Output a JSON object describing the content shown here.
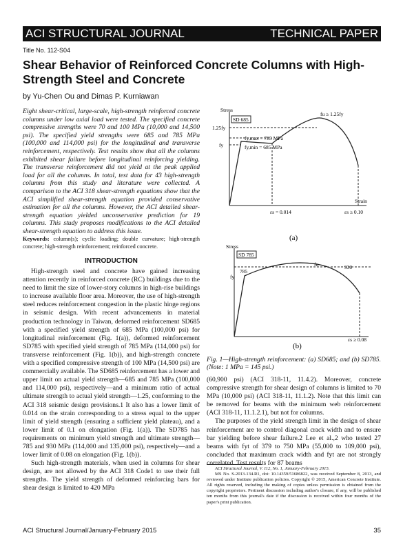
{
  "header": {
    "journal": "ACI STRUCTURAL JOURNAL",
    "section": "TECHNICAL PAPER"
  },
  "title_no": "Title No. 112-S04",
  "title": "Shear Behavior of Reinforced Concrete Columns with High-Strength Steel and Concrete",
  "authors": "by Yu-Chen Ou and Dimas P. Kurniawan",
  "abstract": "Eight shear-critical, large-scale, high-strength reinforced concrete columns under low axial load were tested. The specified concrete compressive strengths were 70 and 100 MPa (10,000 and 14,500 psi). The specified yield strengths were 685 and 785 MPa (100,000 and 114,000 psi) for the longitudinal and transverse reinforcement, respectively. Test results show that all the columns exhibited shear failure before longitudinal reinforcing yielding. The transverse reinforcement did not yield at the peak applied load for all the columns. In total, test data for 43 high-strength columns from this study and literature were collected. A comparison to the ACI 318 shear-strength equations show that the ACI simplified shear-strength equation provided conservative estimation for all the columns. However, the ACI detailed shear-strength equation yielded unconservative prediction for 19 columns. This study proposes modifications to the ACI detailed shear-strength equation to address this issue.",
  "keywords_label": "Keywords:",
  "keywords": "column(s); cyclic loading; double curvature; high-strength concrete; high-strength reinforcement; reinforced concrete.",
  "intro_heading": "INTRODUCTION",
  "body_left": [
    "High-strength steel and concrete have gained increasing attention recently in reinforced concrete (RC) buildings due to the need to limit the size of lower-story columns in high-rise buildings to increase available floor area. Moreover, the use of high-strength steel reduces reinforcement congestion in the plastic hinge regions in seismic design. With recent advancements in material production technology in Taiwan, deformed reinforcement SD685 with a specified yield strength of 685 MPa (100,000 psi) for longitudinal reinforcement (Fig. 1(a)), deformed reinforcement SD785 with specified yield strength of 785 MPa (114,000 psi) for transverse reinforcement (Fig. 1(b)), and high-strength concrete with a specified compressive strength of 100 MPa (14,500 psi) are commercially available. The SD685 reinforcement has a lower and upper limit on actual yield strength—685 and 785 MPa (100,000 and 114,000 psi), respectively—and a minimum ratio of actual ultimate strength to actual yield strength—1.25, conforming to the ACI 318 seismic design provisions.1 It also has a lower limit of 0.014 on the strain corresponding to a stress equal to the upper limit of yield strength (ensuring a sufficient yield plateau), and a lower limit of 0.1 on elongation (Fig. 1(a)). The SD785 has requirements on minimum yield strength and ultimate strength—785 and 930 MPa (114,000 and 135,000 psi), respectively—and a lower limit of 0.08 on elongation (Fig. 1(b)).",
    "Such high-strength materials, when used in columns for shear design, are not allowed by the ACI 318 Code1 to use their full strengths. The yield strength of deformed reinforcing bars for shear design is limited to 420 MPa"
  ],
  "body_right": [
    "(60,900 psi) (ACI 318-11, 11.4.2). Moreover, concrete compressive strength for shear design of columns is limited to 70 MPa (10,000 psi) (ACI 318-11, 11.1.2). Note that this limit can be removed for beams with the minimum web reinforcement (ACI 318-11, 11.1.2.1), but not for columns.",
    "The purposes of the yield strength limit in the design of shear reinforcement are to control diagonal crack width and to ensure bar yielding before shear failure.2 Lee et al.,2 who tested 27 beams with fyt of 379 to 750 MPa (55,000 to 109,000 psi), concluded that maximum crack width and fyt are not strongly correlated. Test results for 87 beams"
  ],
  "figure": {
    "a": {
      "stress": "Stress",
      "strain": "Strain",
      "grade": "SD 685",
      "fu": "fu ≥ 1.25fy",
      "f125": "1.25fy",
      "fmax": "fy,max = 785 MPa",
      "fmin": "fy,min = 685 MPa",
      "fy": "fy",
      "e1": "εs = 0.014",
      "e2": "εs ≥ 0.10",
      "label": "(a)"
    },
    "b": {
      "stress": "Stress",
      "grade": "SD 785",
      "fu": "fu",
      "fu_val": "930",
      "fy_val": "785",
      "fy": "fy",
      "e": "εs ≥ 0.08",
      "label": "(b)"
    },
    "caption": "Fig. 1—High-strength reinforcement: (a) SD685; and (b) SD785. (Note: 1 MPa = 145 psi.)"
  },
  "footnote": {
    "journal": "ACI Structural Journal, V. 112, No. 1, January-February 2015.",
    "ms": "MS No. S-2013-134.R1, doi: 10.14359/51686822, was received September 8, 2013, and reviewed under Institute publication policies. Copyright © 2015, American Concrete Institute. All rights reserved, including the making of copies unless permission is obtained from the copyright proprietors. Pertinent discussion including author's closure, if any, will be published ten months from this journal's date if the discussion is received within four months of the paper's print publication."
  },
  "footer": {
    "left": "ACI Structural Journal/January-February 2015",
    "page": "35"
  }
}
